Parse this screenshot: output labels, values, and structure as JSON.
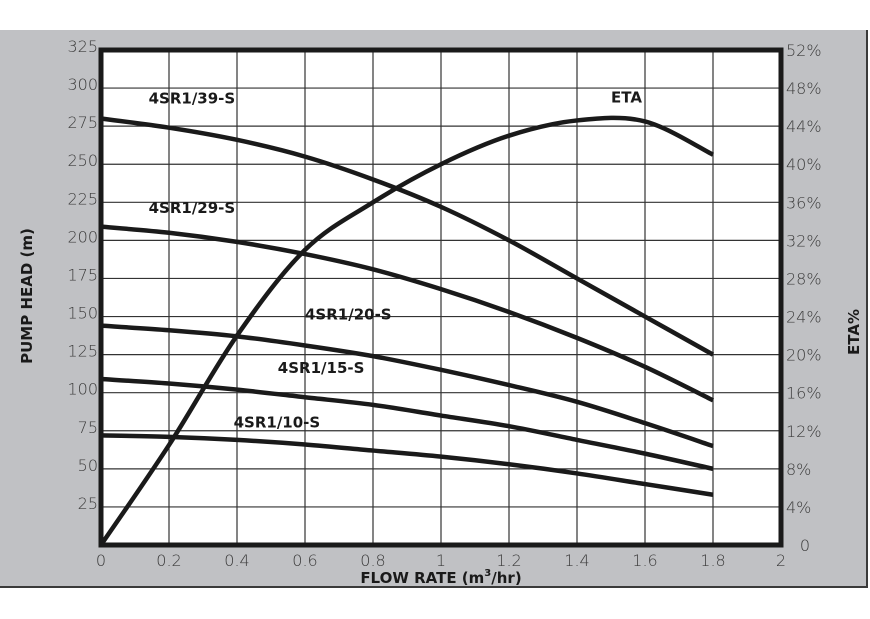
{
  "chart_data": {
    "type": "line",
    "title": "",
    "xlabel": "FLOW RATE (m³/hr)",
    "ylabel": "PUMP HEAD (m)",
    "y2label": "ETA%",
    "xlim": [
      0,
      2
    ],
    "ylim": [
      0,
      325
    ],
    "y2lim": [
      0,
      52
    ],
    "grid": true,
    "x_ticks": [
      "0",
      "0.2",
      "0.4",
      "0.6",
      "0.8",
      "1",
      "1.2",
      "1.4",
      "1.6",
      "1.8",
      "2"
    ],
    "y_ticks": [
      "25",
      "50",
      "75",
      "100",
      "125",
      "150",
      "175",
      "200",
      "225",
      "250",
      "275",
      "300",
      "325"
    ],
    "y2_ticks": [
      "0",
      "4%",
      "8%",
      "12%",
      "16%",
      "20%",
      "24%",
      "28%",
      "32%",
      "36%",
      "40%",
      "44%",
      "48%",
      "52%"
    ],
    "x": [
      0,
      0.2,
      0.4,
      0.6,
      0.8,
      1.0,
      1.2,
      1.4,
      1.6,
      1.8
    ],
    "series": [
      {
        "name": "4SR1/39-S",
        "axis": "left",
        "values": [
          280,
          274,
          266,
          255,
          240,
          222,
          200,
          175,
          150,
          125
        ]
      },
      {
        "name": "4SR1/29-S",
        "axis": "left",
        "values": [
          209,
          205,
          199,
          191,
          181,
          168,
          153,
          136,
          117,
          95
        ]
      },
      {
        "name": "4SR1/20-S",
        "axis": "left",
        "values": [
          144,
          141,
          137,
          131,
          124,
          115,
          105,
          94,
          80,
          65
        ]
      },
      {
        "name": "4SR1/15-S",
        "axis": "left",
        "values": [
          109,
          106,
          102,
          97,
          92,
          85,
          78,
          69,
          60,
          50
        ]
      },
      {
        "name": "4SR1/10-S",
        "axis": "left",
        "values": [
          72,
          71,
          69,
          66,
          62,
          58,
          53,
          47,
          40,
          33
        ]
      },
      {
        "name": "ETA",
        "axis": "right",
        "values": [
          0,
          10.5,
          22,
          31,
          36,
          40,
          43,
          44.6,
          44.5,
          41
        ]
      }
    ],
    "annotations": [
      {
        "text": "4SR1/39-S",
        "x": 0.14,
        "y": 290
      },
      {
        "text": "4SR1/29-S",
        "x": 0.14,
        "y": 218
      },
      {
        "text": "4SR1/20-S",
        "x": 0.6,
        "y": 148
      },
      {
        "text": "4SR1/15-S",
        "x": 0.52,
        "y": 113
      },
      {
        "text": "4SR1/10-S",
        "x": 0.39,
        "y": 77
      },
      {
        "text": "ETA",
        "x": 1.5,
        "y2": 46.5
      }
    ]
  },
  "labels": {
    "xlabel_main": "FLOW RATE (m",
    "xlabel_sup": "3",
    "xlabel_tail": "/hr)",
    "ylabel": "PUMP HEAD (m)",
    "y2label": "ETA%"
  },
  "colors": {
    "panel": "#c0c1c4",
    "plot": "#ffffff",
    "line": "#1a1a1a",
    "grid": "#333333"
  }
}
